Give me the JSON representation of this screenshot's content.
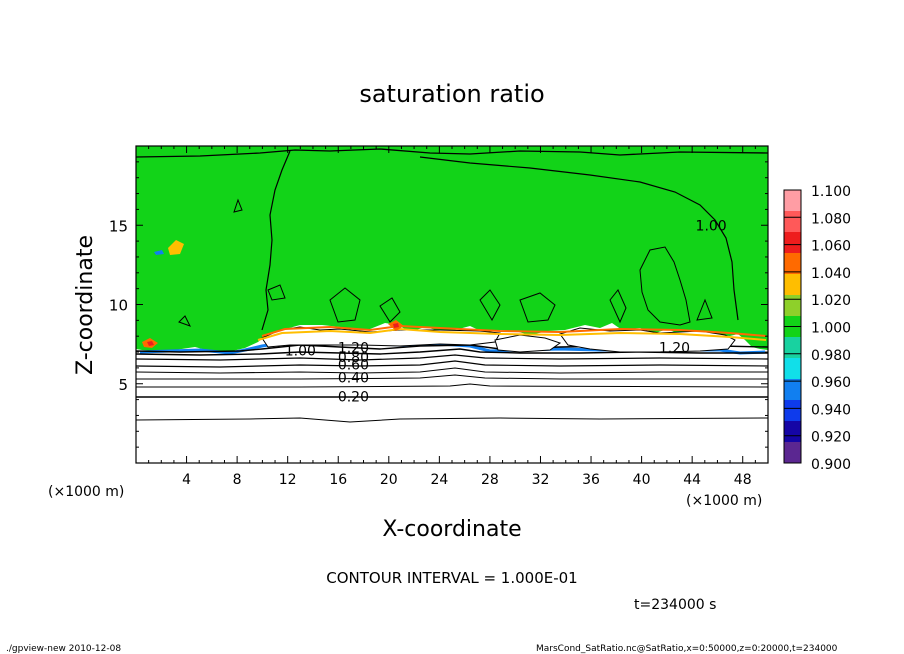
{
  "chart_data": {
    "type": "heatmap",
    "title": "saturation ratio",
    "xlabel": "X-coordinate",
    "ylabel": "Z-coordinate",
    "x_unit": "(×1000 m)",
    "z_unit": "(×1000 m)",
    "xlim": [
      0,
      50
    ],
    "ylim": [
      0,
      20
    ],
    "x_ticks": [
      4,
      8,
      12,
      16,
      20,
      24,
      28,
      32,
      36,
      40,
      44,
      48
    ],
    "y_ticks": [
      5,
      10,
      15
    ],
    "colorbar": {
      "levels": [
        "1.100",
        "1.080",
        "1.060",
        "1.040",
        "1.020",
        "1.000",
        "0.980",
        "0.960",
        "0.940",
        "0.920",
        "0.900"
      ],
      "colors": [
        "#ff9da4",
        "#ff5959",
        "#ee1d1d",
        "#ff6a00",
        "#ffbe00",
        "#8ed02a",
        "#12d318",
        "#18d2a0",
        "#11dfe9",
        "#117ff0",
        "#0e3bec",
        "#1505a5",
        "#5b2791"
      ]
    },
    "contour_labels": [
      {
        "text": "1.20",
        "x": 17.2,
        "z": 7.3
      },
      {
        "text": "1.00",
        "x": 13.0,
        "z": 7.1
      },
      {
        "text": "0.80",
        "x": 17.2,
        "z": 6.7
      },
      {
        "text": "0.60",
        "x": 17.2,
        "z": 6.2
      },
      {
        "text": "0.40",
        "x": 17.2,
        "z": 5.4
      },
      {
        "text": "0.20",
        "x": 17.2,
        "z": 4.2
      },
      {
        "text": "1.20",
        "x": 42.6,
        "z": 7.3
      },
      {
        "text": "1.00",
        "x": 45.5,
        "z": 15.0
      }
    ],
    "contour_interval_text": "CONTOUR INTERVAL = 1.000E-01",
    "time_text": "t=234000 s"
  },
  "footer": {
    "left": "./gpview-new 2010-12-08",
    "right": "MarsCond_SatRatio.nc@SatRatio,x=0:50000,z=0:20000,t=234000"
  }
}
